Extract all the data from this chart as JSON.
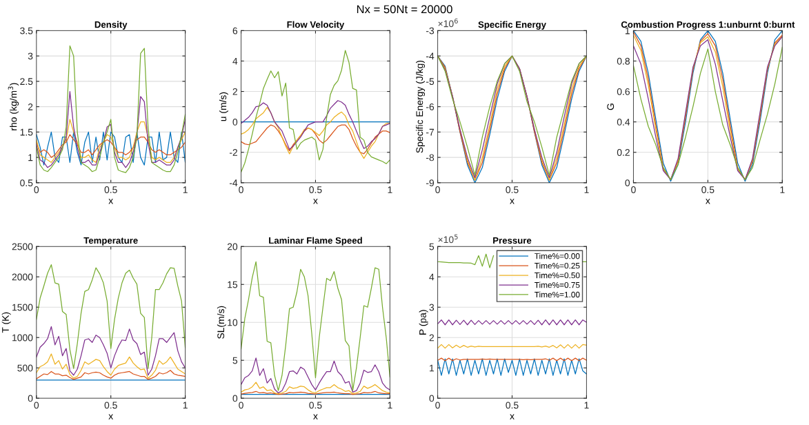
{
  "chart_data": [
    {
      "type": "line",
      "title": "Density",
      "xlabel": "x",
      "ylabel": "rho (kg/m$^{3}$)",
      "annotations": [
        "Nx = 50Nt = 20000"
      ],
      "x": [
        0,
        0.025,
        0.05,
        0.075,
        0.1,
        0.125,
        0.15,
        0.175,
        0.2,
        0.225,
        0.25,
        0.275,
        0.3,
        0.325,
        0.35,
        0.375,
        0.4,
        0.425,
        0.45,
        0.475,
        0.5,
        0.525,
        0.55,
        0.575,
        0.6,
        0.625,
        0.65,
        0.675,
        0.7,
        0.725,
        0.75,
        0.775,
        0.8,
        0.825,
        0.85,
        0.875,
        0.9,
        0.925,
        0.95,
        0.975,
        1
      ],
      "xlim": [
        0,
        1
      ],
      "xticks": [
        0,
        0.5,
        1
      ],
      "ylim": [
        0.5,
        3.5
      ],
      "yticks": [
        0.5,
        1,
        1.5,
        2,
        2.5,
        3,
        3.5
      ],
      "grid": true,
      "series": [
        {
          "color": "#0072bd",
          "values": [
            1.45,
            1.2,
            0.85,
            1.2,
            1.5,
            1.0,
            0.9,
            1.4,
            1.4,
            0.9,
            1.5,
            1.1,
            0.85,
            1.3,
            1.5,
            0.9,
            1.4,
            0.95,
            1.5,
            0.95,
            1.5,
            1.4,
            1.0,
            0.9,
            1.4,
            1.45,
            0.9,
            1.5,
            1.0,
            0.85,
            1.4,
            1.4,
            0.9,
            1.5,
            0.95,
            1.0,
            1.5,
            1.0,
            0.9,
            1.5,
            0.9
          ]
        },
        {
          "color": "#d95319",
          "values": [
            1.3,
            1.1,
            1.15,
            1.1,
            1.0,
            1.05,
            1.15,
            1.25,
            1.3,
            1.45,
            1.35,
            1.25,
            1.1,
            1.1,
            1.15,
            1.05,
            1.15,
            1.25,
            1.3,
            1.35,
            1.3,
            1.2,
            1.1,
            1.1,
            1.05,
            1.1,
            1.2,
            1.35,
            1.4,
            1.4,
            1.3,
            1.15,
            1.1,
            1.15,
            1.1,
            1.05,
            1.05,
            1.1,
            1.15,
            1.2,
            1.3
          ]
        },
        {
          "color": "#edb120",
          "values": [
            1.35,
            1.05,
            1.0,
            0.95,
            0.9,
            1.0,
            1.1,
            1.2,
            1.35,
            1.75,
            1.5,
            1.3,
            1.0,
            1.0,
            1.05,
            0.95,
            0.9,
            1.2,
            1.3,
            1.45,
            1.4,
            1.2,
            1.0,
            1.0,
            0.95,
            1.0,
            1.2,
            1.5,
            1.7,
            1.7,
            1.4,
            1.0,
            0.95,
            1.0,
            0.95,
            0.9,
            0.9,
            1.0,
            1.2,
            1.35,
            1.5
          ]
        },
        {
          "color": "#7e2f8e",
          "values": [
            1.25,
            0.95,
            0.9,
            0.8,
            0.85,
            0.95,
            1.05,
            1.2,
            1.4,
            2.3,
            1.6,
            1.2,
            0.9,
            0.9,
            0.95,
            0.85,
            0.85,
            1.1,
            1.3,
            1.6,
            1.65,
            1.1,
            0.9,
            0.9,
            0.8,
            0.9,
            1.1,
            1.45,
            2.2,
            2.1,
            1.3,
            0.9,
            0.9,
            0.95,
            0.9,
            0.85,
            0.85,
            0.95,
            1.2,
            1.4,
            1.75
          ]
        },
        {
          "color": "#77ac30",
          "values": [
            1.2,
            0.85,
            0.75,
            0.72,
            0.8,
            0.9,
            1.0,
            1.15,
            1.6,
            3.2,
            3.0,
            1.5,
            0.9,
            0.85,
            0.8,
            0.72,
            0.75,
            1.0,
            1.3,
            1.5,
            1.75,
            1.0,
            0.75,
            0.72,
            0.7,
            0.8,
            1.0,
            1.4,
            3.05,
            3.15,
            1.6,
            0.9,
            0.85,
            0.8,
            0.75,
            0.72,
            0.72,
            0.85,
            1.1,
            1.45,
            1.85
          ]
        }
      ]
    },
    {
      "type": "line",
      "title": "Flow Velocity",
      "xlabel": "x",
      "ylabel": "u (m/s)",
      "x": [
        0,
        0.025,
        0.05,
        0.075,
        0.1,
        0.125,
        0.15,
        0.175,
        0.2,
        0.225,
        0.25,
        0.275,
        0.3,
        0.325,
        0.35,
        0.375,
        0.4,
        0.425,
        0.45,
        0.475,
        0.5,
        0.525,
        0.55,
        0.575,
        0.6,
        0.625,
        0.65,
        0.675,
        0.7,
        0.725,
        0.75,
        0.775,
        0.8,
        0.825,
        0.85,
        0.875,
        0.9,
        0.925,
        0.95,
        0.975,
        1
      ],
      "xlim": [
        0,
        1
      ],
      "xticks": [
        0,
        0.5,
        1
      ],
      "ylim": [
        -4,
        6
      ],
      "yticks": [
        -4,
        -2,
        0,
        2,
        4,
        6
      ],
      "grid": true,
      "series": [
        {
          "color": "#0072bd",
          "values": [
            0,
            0,
            0,
            0,
            0,
            0,
            0,
            0,
            0,
            0,
            0,
            0,
            0,
            0,
            0,
            0,
            0,
            0,
            0,
            0,
            0,
            0,
            0,
            0,
            0,
            0,
            0,
            0,
            0,
            0,
            0,
            0,
            0,
            0,
            0,
            0,
            0,
            0,
            0,
            0,
            0
          ]
        },
        {
          "color": "#d95319",
          "values": [
            -1.3,
            -1.45,
            -1.5,
            -1.4,
            -1.3,
            -1.0,
            -0.7,
            -0.4,
            -0.2,
            -0.3,
            -0.6,
            -1.0,
            -1.5,
            -1.9,
            -1.5,
            -1.2,
            -0.9,
            -0.6,
            -0.4,
            -0.5,
            -0.8,
            -1.2,
            -1.4,
            -1.2,
            -0.9,
            -0.6,
            -0.3,
            -0.2,
            -0.2,
            -0.5,
            -1.1,
            -1.6,
            -2.0,
            -2.1,
            -1.8,
            -1.4,
            -1.0,
            -0.8,
            -0.6,
            -0.6,
            -0.7
          ]
        },
        {
          "color": "#edb120",
          "values": [
            -0.8,
            -0.7,
            -0.5,
            -0.2,
            0.2,
            0.4,
            0.6,
            0.95,
            0.6,
            0.0,
            -0.4,
            -1.0,
            -1.6,
            -2.1,
            -1.6,
            -1.2,
            -0.9,
            -0.5,
            -0.4,
            -0.5,
            -0.7,
            -0.9,
            -0.6,
            -0.2,
            0.0,
            0.3,
            0.5,
            0.65,
            0.4,
            -0.2,
            -0.6,
            -1.3,
            -2.0,
            -2.4,
            -2.0,
            -1.6,
            -1.3,
            -0.8,
            -0.3,
            -0.1,
            -0.1
          ]
        },
        {
          "color": "#7e2f8e",
          "values": [
            -0.1,
            0.1,
            0.3,
            0.6,
            1.0,
            1.05,
            1.25,
            1.1,
            0.6,
            0.0,
            -0.3,
            -0.6,
            -1.2,
            -1.8,
            -1.6,
            -1.3,
            -1.0,
            -0.6,
            -0.2,
            -0.1,
            0.0,
            0.0,
            0.0,
            0.4,
            0.9,
            1.15,
            1.4,
            1.3,
            1.1,
            0.5,
            0.0,
            -0.6,
            -1.2,
            -1.75,
            -1.6,
            -1.3,
            -1.1,
            -0.8,
            -0.3,
            -0.2,
            -0.1
          ]
        },
        {
          "color": "#77ac30",
          "values": [
            -3.3,
            -2.7,
            -1.8,
            -0.8,
            0.3,
            1.2,
            2.2,
            2.8,
            3.35,
            2.9,
            3.3,
            1.7,
            2.55,
            -0.4,
            -0.5,
            -1.8,
            -1.4,
            -1.2,
            -1.1,
            -1.0,
            -1.2,
            -2.5,
            -1.8,
            0.3,
            1.8,
            2.4,
            2.7,
            3.4,
            4.7,
            3.9,
            2.2,
            2.1,
            -1.0,
            -1.2,
            -2.0,
            -2.3,
            -2.4,
            -2.5,
            -2.6,
            -2.75,
            -2.5
          ]
        }
      ]
    },
    {
      "type": "line",
      "title": "Specific Energy",
      "xlabel": "x",
      "ylabel": "Specific Energy (J/kg)",
      "annotations": [
        "×10$^{6}$"
      ],
      "x": [
        0,
        0.05,
        0.1,
        0.15,
        0.2,
        0.25,
        0.3,
        0.35,
        0.4,
        0.45,
        0.5,
        0.55,
        0.6,
        0.65,
        0.7,
        0.75,
        0.8,
        0.85,
        0.9,
        0.95,
        1
      ],
      "xlim": [
        0,
        1
      ],
      "xticks": [
        0,
        0.5,
        1
      ],
      "ylim": [
        -9,
        -3
      ],
      "yticks": [
        -9,
        -8,
        -7,
        -6,
        -5,
        -4,
        -3
      ],
      "grid": true,
      "series": [
        {
          "color": "#0072bd",
          "values": [
            -4.0,
            -4.4,
            -5.6,
            -7.0,
            -8.3,
            -9.0,
            -8.4,
            -7.1,
            -5.7,
            -4.6,
            -4.0,
            -4.5,
            -5.6,
            -7.0,
            -8.3,
            -9.0,
            -8.4,
            -7.1,
            -5.7,
            -4.6,
            -4.0
          ]
        },
        {
          "color": "#d95319",
          "values": [
            -4.0,
            -4.45,
            -5.6,
            -7.0,
            -8.2,
            -8.9,
            -8.2,
            -6.9,
            -5.5,
            -4.5,
            -4.0,
            -4.5,
            -5.6,
            -7.0,
            -8.2,
            -8.9,
            -8.2,
            -6.9,
            -5.5,
            -4.5,
            -4.0
          ]
        },
        {
          "color": "#edb120",
          "values": [
            -4.0,
            -4.5,
            -5.6,
            -6.9,
            -8.1,
            -8.9,
            -8.0,
            -6.7,
            -5.3,
            -4.4,
            -4.0,
            -4.5,
            -5.6,
            -6.9,
            -8.1,
            -8.9,
            -8.0,
            -6.7,
            -5.3,
            -4.4,
            -4.0
          ]
        },
        {
          "color": "#7e2f8e",
          "values": [
            -4.0,
            -4.55,
            -5.6,
            -6.9,
            -8.0,
            -8.8,
            -7.7,
            -6.4,
            -5.1,
            -4.3,
            -4.0,
            -4.5,
            -5.6,
            -6.9,
            -8.0,
            -8.8,
            -7.8,
            -6.4,
            -5.1,
            -4.3,
            -4.0
          ]
        },
        {
          "color": "#77ac30",
          "values": [
            -4.0,
            -4.6,
            -5.7,
            -6.6,
            -7.6,
            -8.7,
            -7.2,
            -6.0,
            -5.0,
            -4.3,
            -4.0,
            -4.6,
            -5.8,
            -6.6,
            -7.6,
            -8.7,
            -7.2,
            -6.1,
            -5.0,
            -4.3,
            -4.0
          ]
        }
      ]
    },
    {
      "type": "line",
      "title": "Combustion Progress 1:unburnt 0:burnt",
      "xlabel": "x",
      "ylabel": "G",
      "x": [
        0,
        0.05,
        0.1,
        0.15,
        0.2,
        0.25,
        0.3,
        0.35,
        0.4,
        0.45,
        0.5,
        0.55,
        0.6,
        0.65,
        0.7,
        0.75,
        0.8,
        0.85,
        0.9,
        0.95,
        1
      ],
      "xlim": [
        0,
        1
      ],
      "xticks": [
        0,
        0.5,
        1
      ],
      "ylim": [
        0,
        1
      ],
      "yticks": [
        0,
        0.2,
        0.4,
        0.6,
        0.8,
        1
      ],
      "grid": true,
      "series": [
        {
          "color": "#0072bd",
          "values": [
            1.0,
            0.93,
            0.72,
            0.42,
            0.13,
            0.01,
            0.12,
            0.4,
            0.72,
            0.94,
            1.0,
            0.93,
            0.72,
            0.42,
            0.13,
            0.01,
            0.12,
            0.4,
            0.72,
            0.94,
            1.0
          ]
        },
        {
          "color": "#d95319",
          "values": [
            0.99,
            0.9,
            0.68,
            0.38,
            0.1,
            0.02,
            0.14,
            0.43,
            0.74,
            0.93,
            0.98,
            0.9,
            0.68,
            0.38,
            0.1,
            0.02,
            0.14,
            0.43,
            0.74,
            0.92,
            0.97
          ]
        },
        {
          "color": "#edb120",
          "values": [
            0.97,
            0.87,
            0.64,
            0.35,
            0.09,
            0.02,
            0.15,
            0.45,
            0.75,
            0.92,
            0.96,
            0.86,
            0.63,
            0.34,
            0.09,
            0.02,
            0.15,
            0.45,
            0.75,
            0.91,
            0.96
          ]
        },
        {
          "color": "#7e2f8e",
          "values": [
            0.9,
            0.78,
            0.55,
            0.3,
            0.08,
            0.02,
            0.16,
            0.46,
            0.76,
            0.9,
            0.94,
            0.78,
            0.54,
            0.3,
            0.08,
            0.02,
            0.16,
            0.46,
            0.76,
            0.9,
            0.96
          ]
        },
        {
          "color": "#77ac30",
          "values": [
            0.77,
            0.55,
            0.37,
            0.25,
            0.1,
            0.02,
            0.12,
            0.3,
            0.5,
            0.72,
            0.88,
            0.6,
            0.38,
            0.25,
            0.1,
            0.02,
            0.1,
            0.28,
            0.45,
            0.65,
            0.89
          ]
        }
      ]
    },
    {
      "type": "line",
      "title": "Temperature",
      "xlabel": "x",
      "ylabel": "T (K)",
      "x": [
        0,
        0.025,
        0.05,
        0.075,
        0.1,
        0.125,
        0.15,
        0.175,
        0.2,
        0.225,
        0.25,
        0.275,
        0.3,
        0.325,
        0.35,
        0.375,
        0.4,
        0.425,
        0.45,
        0.475,
        0.5,
        0.525,
        0.55,
        0.575,
        0.6,
        0.625,
        0.65,
        0.675,
        0.7,
        0.725,
        0.75,
        0.775,
        0.8,
        0.825,
        0.85,
        0.875,
        0.9,
        0.925,
        0.95,
        0.975,
        1
      ],
      "xlim": [
        0,
        1
      ],
      "xticks": [
        0,
        0.5,
        1
      ],
      "ylim": [
        0,
        2500
      ],
      "yticks": [
        0,
        500,
        1000,
        1500,
        2000,
        2500
      ],
      "grid": true,
      "series": [
        {
          "color": "#0072bd",
          "values": [
            300,
            300,
            300,
            300,
            300,
            300,
            300,
            300,
            300,
            300,
            300,
            300,
            300,
            300,
            300,
            300,
            300,
            300,
            300,
            300,
            300,
            300,
            300,
            300,
            300,
            300,
            300,
            300,
            300,
            300,
            300,
            300,
            300,
            300,
            300,
            300,
            300,
            300,
            300,
            300,
            300
          ]
        },
        {
          "color": "#d95319",
          "values": [
            320,
            360,
            400,
            390,
            440,
            400,
            400,
            370,
            380,
            340,
            310,
            330,
            350,
            420,
            400,
            420,
            430,
            420,
            380,
            350,
            330,
            380,
            410,
            420,
            430,
            440,
            400,
            380,
            360,
            360,
            310,
            330,
            360,
            420,
            400,
            420,
            460,
            400,
            380,
            370,
            360
          ]
        },
        {
          "color": "#edb120",
          "values": [
            420,
            520,
            550,
            600,
            730,
            560,
            620,
            480,
            560,
            390,
            330,
            360,
            460,
            600,
            560,
            600,
            640,
            620,
            520,
            440,
            380,
            480,
            540,
            560,
            580,
            680,
            580,
            520,
            470,
            480,
            330,
            380,
            460,
            620,
            560,
            600,
            680,
            580,
            480,
            440,
            400
          ]
        },
        {
          "color": "#7e2f8e",
          "values": [
            680,
            840,
            900,
            980,
            1180,
            880,
            1020,
            700,
            820,
            450,
            380,
            480,
            700,
            960,
            980,
            920,
            1040,
            1000,
            880,
            740,
            500,
            700,
            850,
            960,
            950,
            1140,
            960,
            900,
            720,
            760,
            380,
            480,
            700,
            980,
            980,
            920,
            1000,
            1080,
            780,
            600,
            500
          ]
        },
        {
          "color": "#77ac30",
          "values": [
            1300,
            1650,
            1850,
            2060,
            2200,
            1900,
            1880,
            1430,
            1380,
            800,
            490,
            900,
            1400,
            1760,
            1790,
            1950,
            2150,
            2050,
            1900,
            1600,
            820,
            1300,
            1650,
            1900,
            2060,
            2110,
            1980,
            1880,
            1400,
            1330,
            490,
            1000,
            1790,
            1790,
            1900,
            2050,
            2150,
            2140,
            1850,
            1600,
            830
          ]
        }
      ]
    },
    {
      "type": "line",
      "title": "Laminar Flame Speed",
      "xlabel": "x",
      "ylabel": "SL(m/s)",
      "x": [
        0,
        0.025,
        0.05,
        0.075,
        0.1,
        0.125,
        0.15,
        0.175,
        0.2,
        0.225,
        0.25,
        0.275,
        0.3,
        0.325,
        0.35,
        0.375,
        0.4,
        0.425,
        0.45,
        0.475,
        0.5,
        0.525,
        0.55,
        0.575,
        0.6,
        0.625,
        0.65,
        0.675,
        0.7,
        0.725,
        0.75,
        0.775,
        0.8,
        0.825,
        0.85,
        0.875,
        0.9,
        0.925,
        0.95,
        0.975,
        1
      ],
      "xlim": [
        0,
        1
      ],
      "xticks": [
        0,
        0.5,
        1
      ],
      "ylim": [
        0,
        20
      ],
      "yticks": [
        0,
        5,
        10,
        15,
        20
      ],
      "grid": true,
      "series": [
        {
          "color": "#0072bd",
          "values": [
            0.5,
            0.5,
            0.5,
            0.5,
            0.5,
            0.5,
            0.5,
            0.5,
            0.5,
            0.5,
            0.5,
            0.5,
            0.5,
            0.5,
            0.5,
            0.5,
            0.5,
            0.5,
            0.5,
            0.5,
            0.5,
            0.5,
            0.5,
            0.5,
            0.5,
            0.5,
            0.5,
            0.5,
            0.5,
            0.5,
            0.5,
            0.5,
            0.5,
            0.5,
            0.5,
            0.5,
            0.5,
            0.5,
            0.5,
            0.5,
            0.5
          ]
        },
        {
          "color": "#d95319",
          "values": [
            0.55,
            0.65,
            0.7,
            0.75,
            0.9,
            0.7,
            0.75,
            0.65,
            0.7,
            0.6,
            0.5,
            0.55,
            0.6,
            0.75,
            0.7,
            0.75,
            0.8,
            0.75,
            0.65,
            0.6,
            0.55,
            0.65,
            0.7,
            0.75,
            0.75,
            0.8,
            0.7,
            0.65,
            0.6,
            0.6,
            0.5,
            0.55,
            0.6,
            0.75,
            0.7,
            0.75,
            0.9,
            0.7,
            0.65,
            0.6,
            0.6
          ]
        },
        {
          "color": "#edb120",
          "values": [
            0.8,
            1.1,
            1.2,
            1.5,
            2.1,
            1.3,
            1.5,
            1.0,
            1.1,
            0.7,
            0.6,
            0.7,
            0.9,
            1.5,
            1.3,
            1.4,
            1.6,
            1.5,
            1.1,
            0.8,
            0.7,
            1.0,
            1.2,
            1.4,
            1.4,
            1.8,
            1.4,
            1.2,
            0.9,
            1.0,
            0.6,
            0.7,
            0.9,
            1.6,
            1.3,
            1.5,
            1.8,
            1.4,
            1.0,
            0.8,
            0.7
          ]
        },
        {
          "color": "#7e2f8e",
          "values": [
            1.8,
            2.7,
            3.0,
            3.6,
            5.3,
            3.0,
            3.9,
            2.0,
            2.6,
            1.2,
            0.7,
            1.0,
            2.0,
            3.5,
            3.6,
            3.2,
            4.1,
            3.8,
            2.8,
            1.8,
            1.1,
            2.0,
            2.8,
            3.5,
            3.5,
            4.9,
            3.5,
            3.0,
            2.0,
            2.2,
            0.8,
            1.0,
            2.0,
            3.7,
            3.4,
            3.5,
            4.4,
            3.5,
            2.0,
            1.4,
            1.1
          ]
        },
        {
          "color": "#77ac30",
          "values": [
            6.5,
            10.5,
            13.0,
            15.9,
            18.0,
            13.5,
            13.3,
            7.5,
            7.3,
            3.0,
            1.0,
            3.0,
            7.0,
            11.8,
            12.0,
            14.0,
            17.0,
            16.0,
            13.5,
            8.5,
            2.7,
            8.0,
            12.0,
            15.8,
            15.5,
            16.7,
            14.5,
            13.0,
            7.6,
            6.9,
            1.0,
            4.0,
            8.0,
            12.2,
            12.0,
            14.5,
            17.2,
            17.0,
            12.0,
            8.0,
            2.8
          ]
        }
      ]
    },
    {
      "type": "line",
      "title": "Pressure",
      "xlabel": "x",
      "ylabel": "P (pa)",
      "annotations": [
        "×10$^{5}$"
      ],
      "legend": "top right",
      "x": [
        0,
        0.025,
        0.05,
        0.075,
        0.1,
        0.125,
        0.15,
        0.175,
        0.2,
        0.225,
        0.25,
        0.275,
        0.3,
        0.325,
        0.35,
        0.375,
        0.4,
        0.425,
        0.45,
        0.475,
        0.5,
        0.525,
        0.55,
        0.575,
        0.6,
        0.625,
        0.65,
        0.675,
        0.7,
        0.725,
        0.75,
        0.775,
        0.8,
        0.825,
        0.85,
        0.875,
        0.9,
        0.925,
        0.95,
        0.975,
        1
      ],
      "xlim": [
        0,
        1
      ],
      "xticks": [
        0,
        0.5,
        1
      ],
      "ylim": [
        0,
        5
      ],
      "yticks": [
        0,
        1,
        2,
        3,
        4,
        5
      ],
      "grid": true,
      "series": [
        {
          "name": "Time%=0.00",
          "color": "#0072bd",
          "values": [
            1.25,
            0.75,
            1.3,
            0.8,
            1.3,
            0.75,
            1.25,
            0.8,
            1.3,
            0.75,
            1.25,
            0.8,
            1.3,
            0.75,
            1.25,
            0.8,
            1.3,
            0.75,
            1.3,
            0.85,
            1.25,
            0.75,
            1.3,
            0.75,
            1.25,
            0.8,
            1.3,
            0.75,
            1.25,
            0.8,
            1.3,
            0.75,
            1.25,
            0.8,
            1.3,
            0.75,
            1.25,
            0.8,
            1.3,
            0.9,
            0.8
          ]
        },
        {
          "name": "Time%=0.25",
          "color": "#d95319",
          "values": [
            1.25,
            1.32,
            1.24,
            1.32,
            1.24,
            1.3,
            1.26,
            1.28,
            1.28,
            1.28,
            1.28,
            1.28,
            1.29,
            1.28,
            1.29,
            1.28,
            1.28,
            1.28,
            1.28,
            1.28,
            1.28,
            1.28,
            1.28,
            1.27,
            1.28,
            1.27,
            1.28,
            1.28,
            1.28,
            1.3,
            1.25,
            1.32,
            1.24,
            1.32,
            1.24,
            1.32,
            1.24,
            1.32,
            1.24,
            1.32,
            1.25
          ]
        },
        {
          "name": "Time%=0.50",
          "color": "#edb120",
          "values": [
            1.65,
            1.77,
            1.65,
            1.77,
            1.66,
            1.75,
            1.67,
            1.74,
            1.68,
            1.72,
            1.69,
            1.71,
            1.7,
            1.7,
            1.7,
            1.7,
            1.7,
            1.7,
            1.7,
            1.7,
            1.7,
            1.7,
            1.7,
            1.7,
            1.7,
            1.7,
            1.7,
            1.71,
            1.69,
            1.72,
            1.68,
            1.74,
            1.66,
            1.76,
            1.65,
            1.77,
            1.65,
            1.77,
            1.65,
            1.77,
            1.75
          ]
        },
        {
          "name": "Time%=0.75",
          "color": "#7e2f8e",
          "values": [
            2.45,
            2.58,
            2.42,
            2.58,
            2.42,
            2.57,
            2.43,
            2.57,
            2.42,
            2.57,
            2.43,
            2.56,
            2.44,
            2.56,
            2.44,
            2.56,
            2.44,
            2.56,
            2.44,
            2.56,
            2.44,
            2.56,
            2.44,
            2.56,
            2.44,
            2.56,
            2.43,
            2.57,
            2.42,
            2.58,
            2.42,
            2.58,
            2.42,
            2.58,
            2.42,
            2.58,
            2.42,
            2.58,
            2.42,
            2.58,
            2.5
          ]
        },
        {
          "name": "Time%=1.00",
          "color": "#77ac30",
          "values": [
            4.5,
            4.49,
            4.48,
            4.47,
            4.47,
            4.47,
            4.47,
            4.46,
            4.46,
            4.45,
            4.4,
            4.7,
            4.35,
            4.75,
            4.3,
            4.7,
            null,
            null,
            null,
            null,
            null,
            null,
            null,
            null,
            null,
            null,
            null,
            null,
            null,
            null,
            null,
            null,
            null,
            null,
            null,
            null,
            null,
            null,
            null,
            4.5,
            4.5
          ]
        }
      ]
    }
  ]
}
